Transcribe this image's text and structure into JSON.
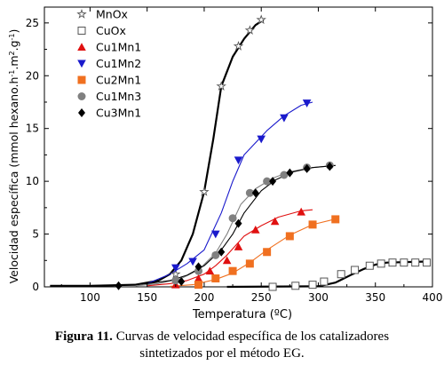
{
  "chart_data": {
    "type": "line",
    "xlabel": "Temperatura (ºC)",
    "ylabel": "Velocidad específica (mmol hexano.h",
    "ylabel_sup1": "-1",
    "ylabel_mid": ".m",
    "ylabel_sup2": "2",
    "ylabel_mid2": ".g",
    "ylabel_sup3": "-1",
    "ylabel_end": ")",
    "xlim": [
      60,
      400
    ],
    "ylim": [
      0,
      26.5
    ],
    "xticks": [
      100,
      150,
      200,
      250,
      300,
      350,
      400
    ],
    "yticks": [
      0,
      5,
      10,
      15,
      20,
      25
    ],
    "grid": false,
    "legend_position": "top-left",
    "series": [
      {
        "name": "MnOx",
        "marker": "star",
        "color": "#555555",
        "points": [
          [
            175,
            1.2
          ],
          [
            200,
            9.0
          ],
          [
            215,
            19.0
          ],
          [
            230,
            22.8
          ],
          [
            240,
            24.3
          ],
          [
            250,
            25.3
          ]
        ],
        "curve": [
          [
            65,
            0.1
          ],
          [
            100,
            0.1
          ],
          [
            140,
            0.2
          ],
          [
            160,
            0.6
          ],
          [
            170,
            1.2
          ],
          [
            180,
            2.5
          ],
          [
            190,
            5.0
          ],
          [
            200,
            9.0
          ],
          [
            208,
            14.0
          ],
          [
            215,
            19.0
          ],
          [
            225,
            21.8
          ],
          [
            235,
            23.5
          ],
          [
            245,
            24.8
          ],
          [
            252,
            25.3
          ]
        ]
      },
      {
        "name": "CuOx",
        "marker": "square-open",
        "color": "#555555",
        "points": [
          [
            260,
            0.0
          ],
          [
            280,
            0.1
          ],
          [
            295,
            0.2
          ],
          [
            305,
            0.5
          ],
          [
            320,
            1.2
          ],
          [
            332,
            1.6
          ],
          [
            345,
            2.0
          ],
          [
            355,
            2.2
          ],
          [
            365,
            2.3
          ],
          [
            375,
            2.3
          ],
          [
            385,
            2.3
          ],
          [
            395,
            2.3
          ]
        ],
        "curve": [
          [
            220,
            0.0
          ],
          [
            300,
            0.05
          ],
          [
            315,
            0.4
          ],
          [
            330,
            1.2
          ],
          [
            340,
            1.7
          ],
          [
            350,
            2.1
          ],
          [
            360,
            2.3
          ],
          [
            395,
            2.4
          ]
        ]
      },
      {
        "name": "Cu1Mn1",
        "marker": "triangle-up",
        "color": "#e01010",
        "points": [
          [
            175,
            0.2
          ],
          [
            195,
            0.8
          ],
          [
            205,
            1.5
          ],
          [
            220,
            2.5
          ],
          [
            230,
            3.8
          ],
          [
            245,
            5.4
          ],
          [
            262,
            6.2
          ],
          [
            285,
            7.1
          ]
        ],
        "curve": [
          [
            150,
            0.1
          ],
          [
            170,
            0.3
          ],
          [
            185,
            0.6
          ],
          [
            200,
            1.2
          ],
          [
            210,
            2.0
          ],
          [
            220,
            3.0
          ],
          [
            235,
            4.8
          ],
          [
            250,
            5.8
          ],
          [
            265,
            6.6
          ],
          [
            285,
            7.2
          ],
          [
            295,
            7.3
          ]
        ]
      },
      {
        "name": "Cu1Mn2",
        "marker": "triangle-down",
        "color": "#1a1acc",
        "points": [
          [
            175,
            1.8
          ],
          [
            190,
            2.4
          ],
          [
            210,
            5.0
          ],
          [
            230,
            12.0
          ],
          [
            250,
            14.0
          ],
          [
            270,
            16.0
          ],
          [
            290,
            17.4
          ]
        ],
        "curve": [
          [
            150,
            0.3
          ],
          [
            170,
            1.2
          ],
          [
            185,
            2.2
          ],
          [
            200,
            3.5
          ],
          [
            215,
            7.0
          ],
          [
            225,
            10.0
          ],
          [
            235,
            12.5
          ],
          [
            255,
            14.8
          ],
          [
            270,
            16.2
          ],
          [
            285,
            17.2
          ],
          [
            295,
            17.5
          ]
        ]
      },
      {
        "name": "Cu2Mn1",
        "marker": "square-filled",
        "color": "#f07020",
        "points": [
          [
            195,
            0.2
          ],
          [
            210,
            0.8
          ],
          [
            225,
            1.5
          ],
          [
            240,
            2.2
          ],
          [
            255,
            3.3
          ],
          [
            275,
            4.8
          ],
          [
            295,
            5.9
          ],
          [
            315,
            6.4
          ]
        ],
        "curve": [
          [
            170,
            0.05
          ],
          [
            190,
            0.2
          ],
          [
            210,
            0.7
          ],
          [
            225,
            1.3
          ],
          [
            240,
            2.3
          ],
          [
            255,
            3.5
          ],
          [
            275,
            4.9
          ],
          [
            295,
            5.9
          ],
          [
            318,
            6.5
          ]
        ]
      },
      {
        "name": "Cu1Mn3",
        "marker": "circle",
        "color": "#808080",
        "points": [
          [
            175,
            0.6
          ],
          [
            195,
            1.5
          ],
          [
            210,
            3.0
          ],
          [
            225,
            6.5
          ],
          [
            240,
            8.9
          ],
          [
            255,
            10.0
          ],
          [
            270,
            10.6
          ],
          [
            290,
            11.3
          ],
          [
            310,
            11.5
          ]
        ],
        "curve": [
          [
            140,
            0.1
          ],
          [
            160,
            0.3
          ],
          [
            180,
            0.8
          ],
          [
            195,
            1.6
          ],
          [
            210,
            3.2
          ],
          [
            220,
            5.0
          ],
          [
            232,
            7.8
          ],
          [
            245,
            9.3
          ],
          [
            260,
            10.3
          ],
          [
            275,
            10.9
          ],
          [
            295,
            11.3
          ],
          [
            315,
            11.5
          ]
        ]
      },
      {
        "name": "Cu3Mn1",
        "marker": "diamond",
        "color": "#000000",
        "points": [
          [
            125,
            0.1
          ],
          [
            180,
            0.5
          ],
          [
            195,
            1.9
          ],
          [
            215,
            3.3
          ],
          [
            230,
            6.0
          ],
          [
            245,
            8.9
          ],
          [
            260,
            10.0
          ],
          [
            275,
            10.8
          ],
          [
            290,
            11.2
          ],
          [
            310,
            11.4
          ]
        ],
        "curve": [
          [
            65,
            0.1
          ],
          [
            120,
            0.1
          ],
          [
            150,
            0.3
          ],
          [
            170,
            0.6
          ],
          [
            185,
            1.1
          ],
          [
            200,
            2.0
          ],
          [
            215,
            3.5
          ],
          [
            225,
            5.0
          ],
          [
            235,
            7.0
          ],
          [
            250,
            9.1
          ],
          [
            262,
            10.1
          ],
          [
            278,
            10.9
          ],
          [
            295,
            11.3
          ],
          [
            315,
            11.5
          ]
        ]
      }
    ]
  },
  "caption": {
    "label": "Figura 11.",
    "line1": " Curvas de velocidad específica de los catalizadores",
    "line2": "sintetizados por el método EG."
  }
}
